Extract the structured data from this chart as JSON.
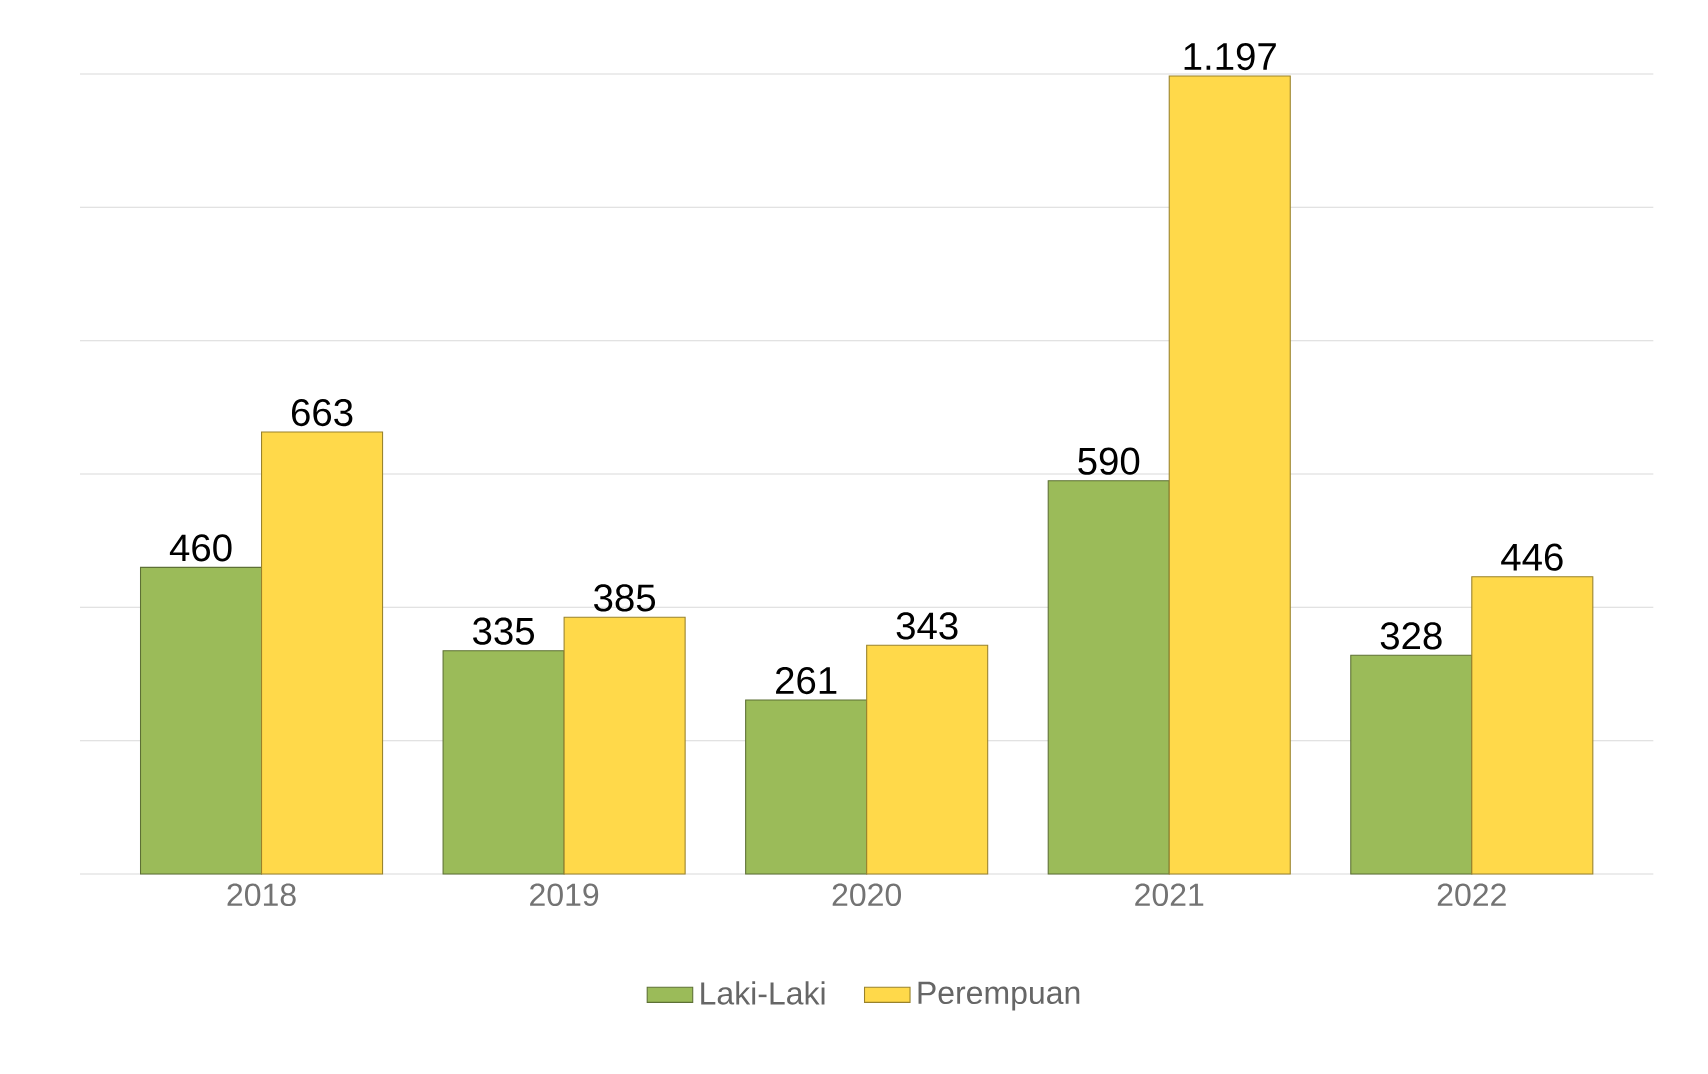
{
  "chart_data": {
    "type": "bar",
    "categories": [
      "2018",
      "2019",
      "2020",
      "2021",
      "2022"
    ],
    "series": [
      {
        "name": "Laki-Laki",
        "color": "#9bbb59",
        "values": [
          460,
          335,
          261,
          590,
          328
        ],
        "value_labels": [
          "460",
          "335",
          "261",
          "590",
          "328"
        ]
      },
      {
        "name": "Perempuan",
        "color": "#ffd94a",
        "values": [
          663,
          385,
          343,
          1197,
          446
        ],
        "value_labels": [
          "663",
          "385",
          "343",
          "1.197",
          "446"
        ]
      }
    ],
    "ylim": [
      0,
      1200
    ],
    "yticks": [
      {
        "value": 0,
        "label": null
      },
      {
        "value": 200,
        "label": null
      },
      {
        "value": 400,
        "label": null
      },
      {
        "value": 600,
        "label": null
      },
      {
        "value": 800,
        "label": null
      },
      {
        "value": 1000,
        "label": null
      },
      {
        "value": 1200,
        "label": null
      }
    ],
    "grid": "y",
    "legend": "bottom",
    "tick_labels": "x"
  }
}
